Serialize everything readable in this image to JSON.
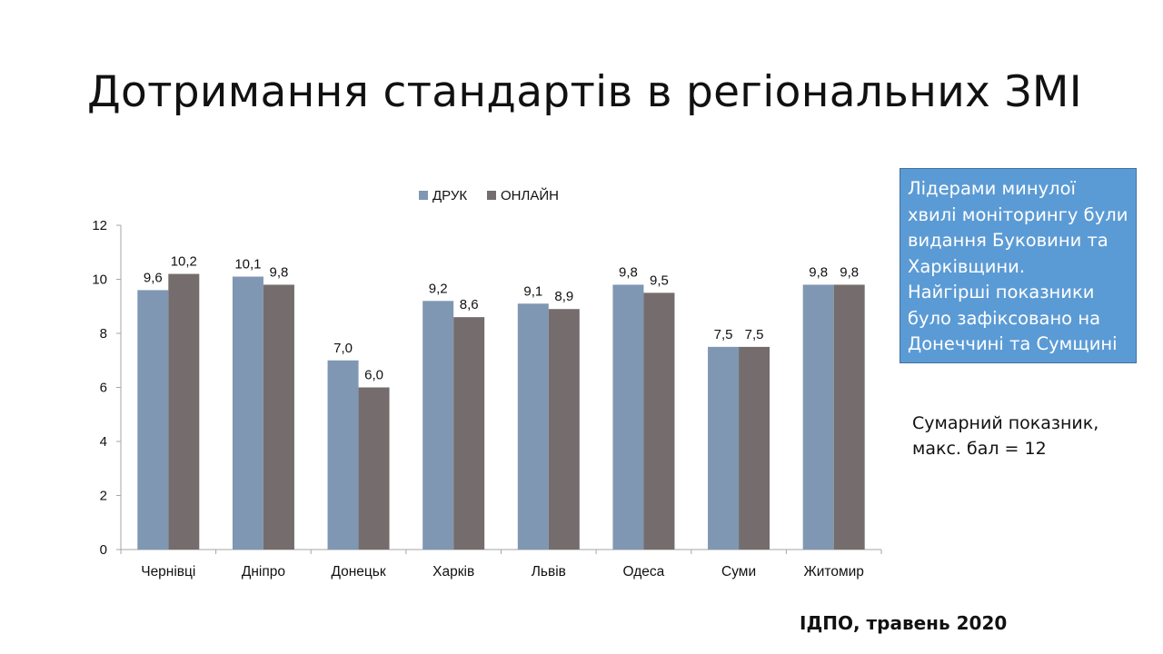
{
  "slide": {
    "title": "Дотримання стандартів в регіональних ЗМІ",
    "callout_lines": [
      "Лідерами минулої",
      "хвилі моніторингу були",
      "видання Буковини та",
      "Харківщини.",
      "Найгірші показники",
      "було зафіксовано на",
      "Донеччині та Сумщині"
    ],
    "note_lines": [
      "Сумарний показник,",
      "макс. бал = 12"
    ],
    "source": "ІДПО, травень 2020"
  },
  "colors": {
    "print": "#7f97b2",
    "online": "#756d6d",
    "callout_bg": "#5b9bd5"
  },
  "chart_data": {
    "type": "bar",
    "categories": [
      "Чернівці",
      "Дніпро",
      "Донецьк",
      "Харків",
      "Львів",
      "Одеса",
      "Суми",
      "Житомир"
    ],
    "series": [
      {
        "name": "ДРУК",
        "values": [
          9.6,
          10.1,
          7.0,
          9.2,
          9.1,
          9.8,
          7.5,
          9.8
        ],
        "labels": [
          "9,6",
          "10,1",
          "7,0",
          "9,2",
          "9,1",
          "9,8",
          "7,5",
          "9,8"
        ]
      },
      {
        "name": "ОНЛАЙН",
        "values": [
          10.2,
          9.8,
          6.0,
          8.6,
          8.9,
          9.5,
          7.5,
          9.8
        ],
        "labels": [
          "10,2",
          "9,8",
          "6,0",
          "8,6",
          "8,9",
          "9,5",
          "7,5",
          "9,8"
        ]
      }
    ],
    "ylim": [
      0,
      12
    ],
    "yticks": [
      0,
      2,
      4,
      6,
      8,
      10,
      12
    ],
    "legend_position": "top",
    "grid": false
  }
}
